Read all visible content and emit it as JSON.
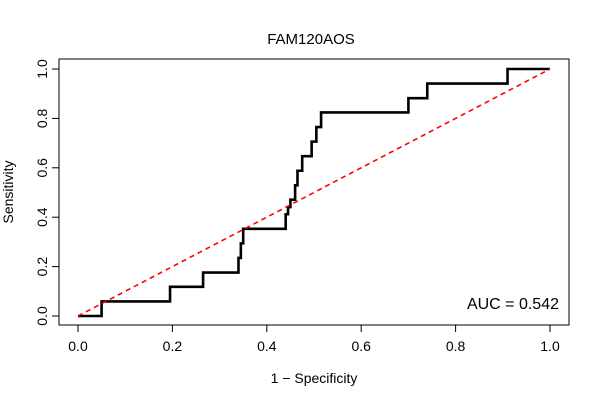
{
  "chart_data": {
    "type": "line",
    "title": "FAM120AOS",
    "xlabel": "1 − Specificity",
    "ylabel": "Sensitivity",
    "xlim": [
      0,
      1
    ],
    "ylim": [
      0,
      1
    ],
    "xticks": [
      0.0,
      0.2,
      0.4,
      0.6,
      0.8,
      1.0
    ],
    "yticks": [
      0.0,
      0.2,
      0.4,
      0.6,
      0.8,
      1.0
    ],
    "xtick_labels": [
      "0.0",
      "0.2",
      "0.4",
      "0.6",
      "0.8",
      "1.0"
    ],
    "ytick_labels": [
      "0.0",
      "0.2",
      "0.4",
      "0.6",
      "0.8",
      "1.0"
    ],
    "grid": false,
    "annotation": "AUC = 0.542",
    "series": [
      {
        "style": "solid",
        "color": "#000000",
        "x": [
          0.0,
          0.05,
          0.05,
          0.195,
          0.195,
          0.265,
          0.265,
          0.34,
          0.34,
          0.345,
          0.345,
          0.35,
          0.35,
          0.44,
          0.44,
          0.445,
          0.445,
          0.45,
          0.45,
          0.46,
          0.46,
          0.465,
          0.465,
          0.475,
          0.475,
          0.49,
          0.49,
          0.495,
          0.495,
          0.505,
          0.505,
          0.51,
          0.51,
          0.515,
          0.515,
          0.525,
          0.525,
          0.62,
          0.7,
          0.7,
          0.74,
          0.74,
          0.91,
          0.91,
          1.0
        ],
        "y": [
          0.0,
          0.0,
          0.059,
          0.059,
          0.118,
          0.118,
          0.176,
          0.176,
          0.235,
          0.235,
          0.294,
          0.294,
          0.353,
          0.353,
          0.412,
          0.412,
          0.441,
          0.441,
          0.471,
          0.471,
          0.529,
          0.529,
          0.588,
          0.588,
          0.647,
          0.647,
          0.647,
          0.647,
          0.706,
          0.706,
          0.765,
          0.765,
          0.765,
          0.765,
          0.824,
          0.824,
          0.824,
          0.824,
          0.824,
          0.882,
          0.882,
          0.941,
          0.941,
          1.0,
          1.0
        ]
      },
      {
        "style": "dashed",
        "color": "#ff0000",
        "x": [
          0,
          1
        ],
        "y": [
          0,
          1
        ]
      }
    ]
  }
}
